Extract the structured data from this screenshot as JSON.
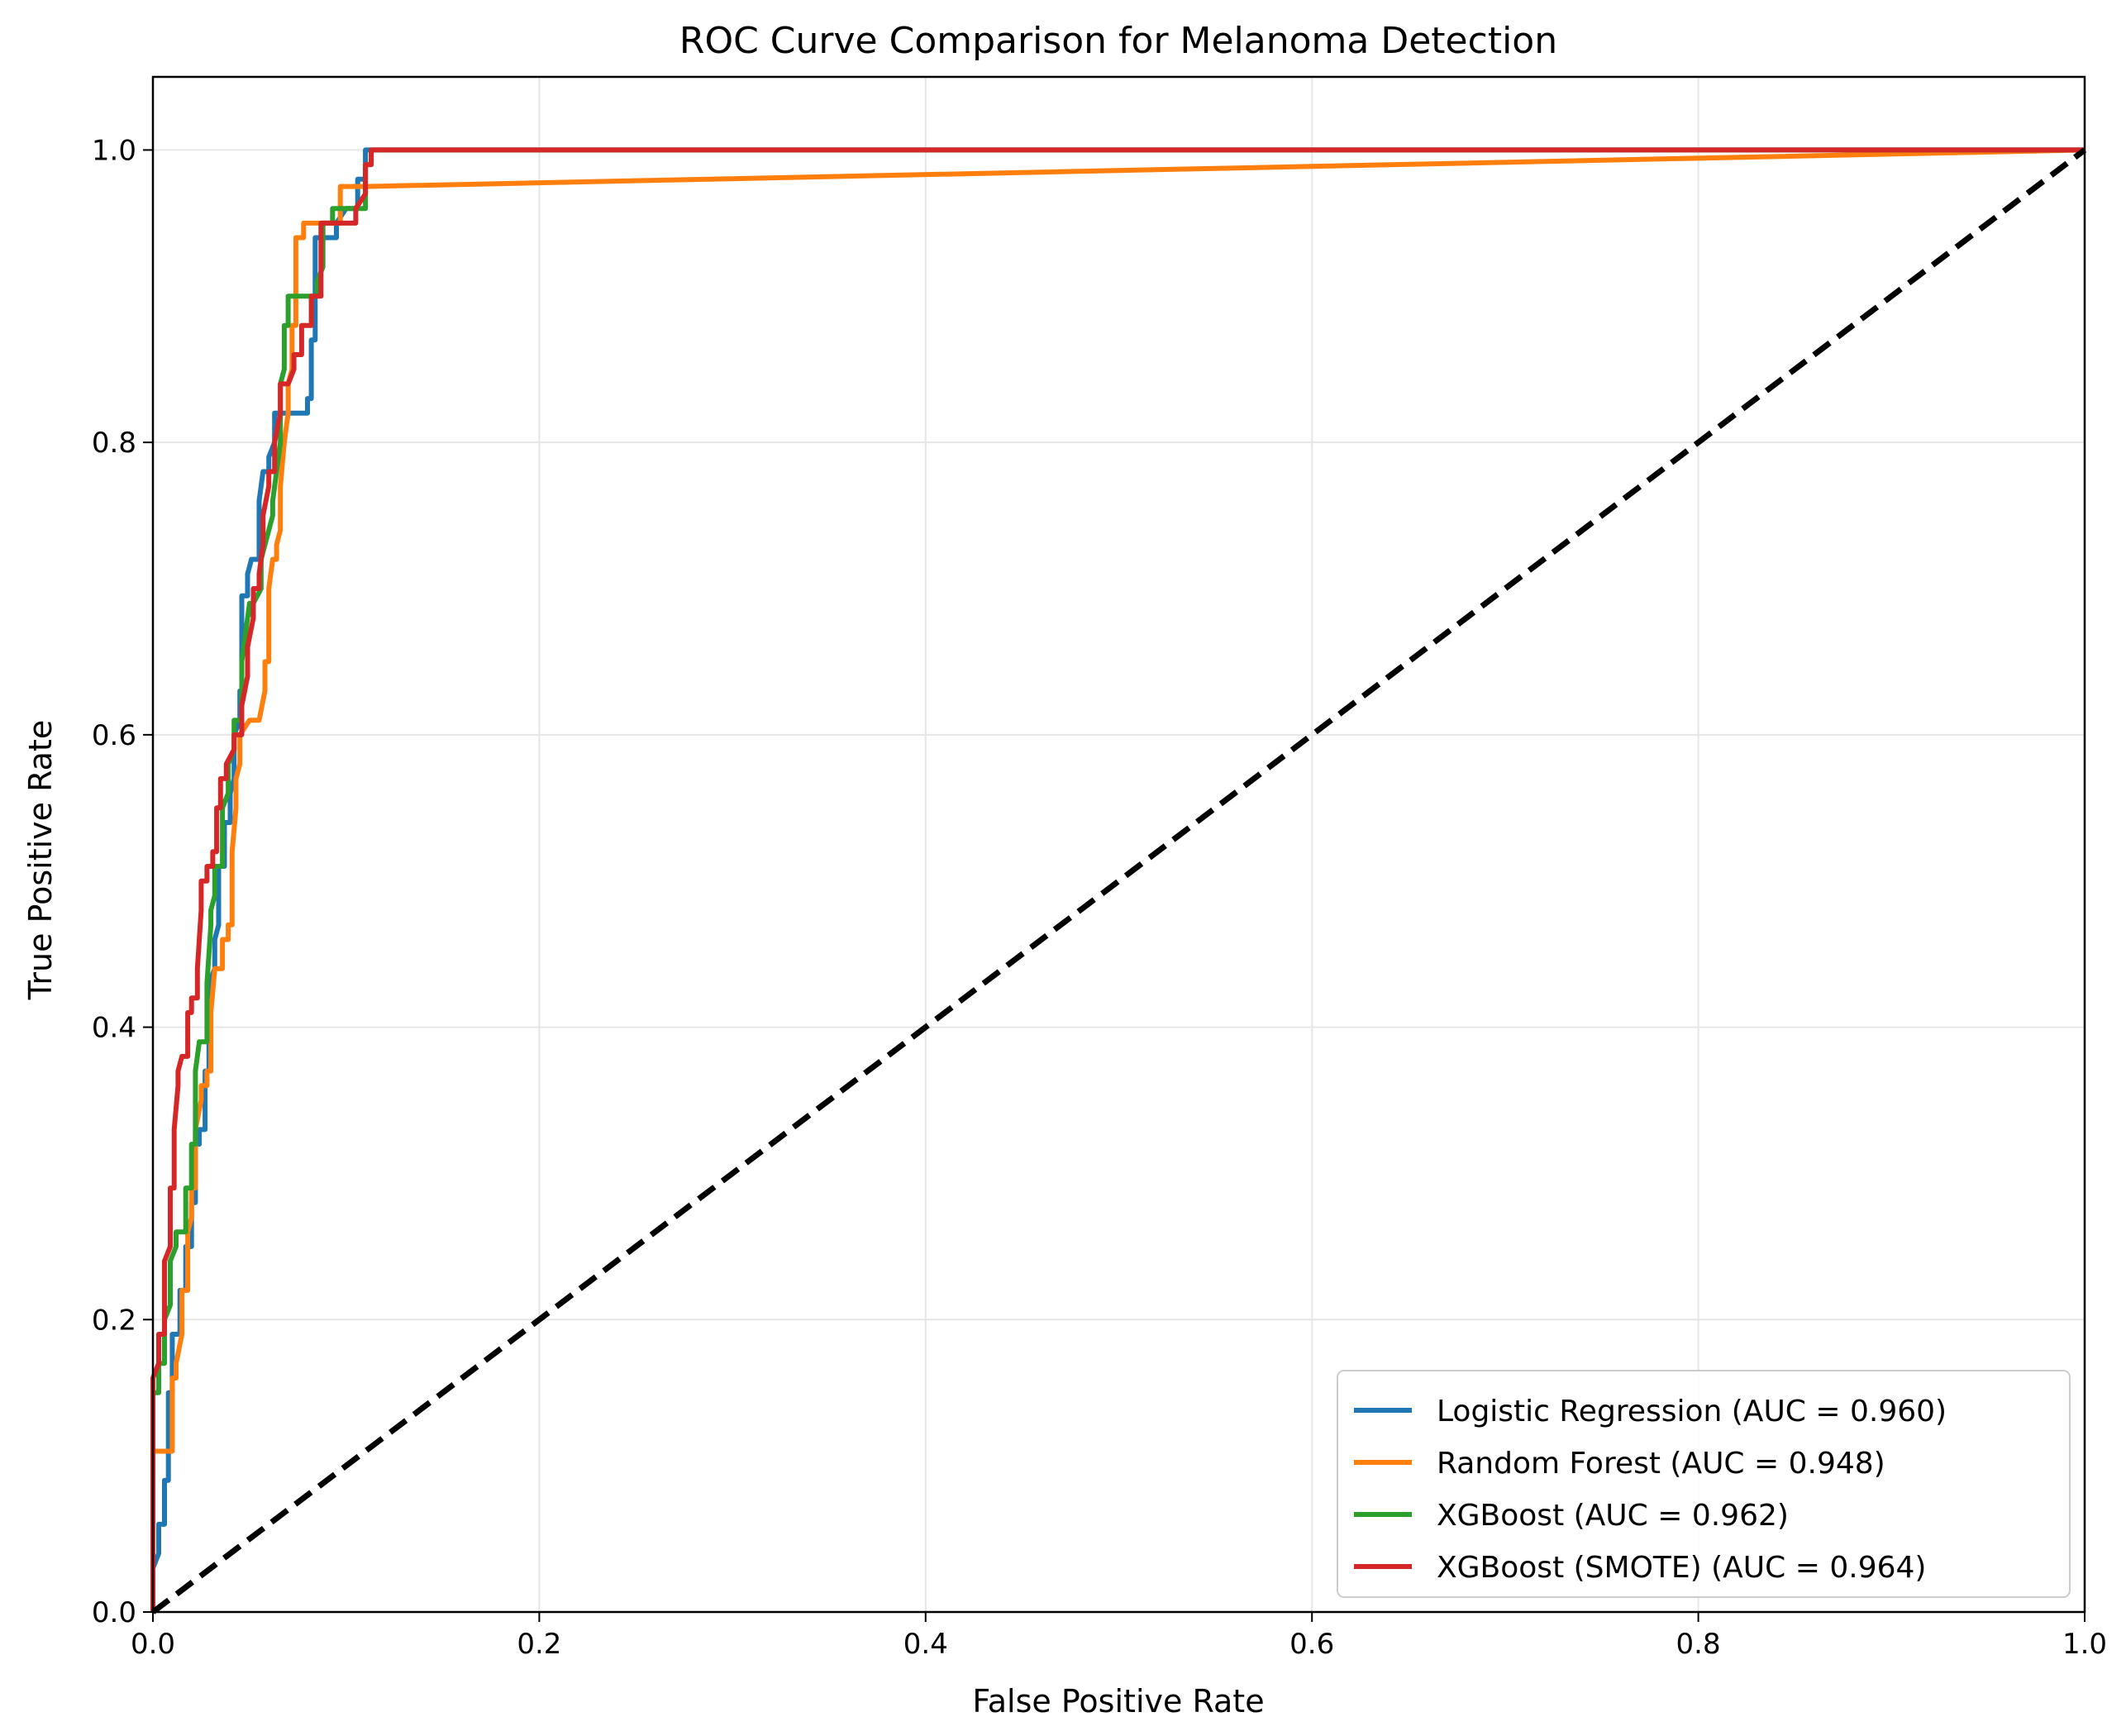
{
  "chart_data": {
    "type": "line",
    "title": "ROC Curve Comparison for Melanoma Detection",
    "xlabel": "False Positive Rate",
    "ylabel": "True Positive Rate",
    "xlim": [
      0.0,
      1.0
    ],
    "ylim": [
      0.0,
      1.05
    ],
    "x_ticks": [
      "0.0",
      "0.2",
      "0.4",
      "0.6",
      "0.8",
      "1.0"
    ],
    "y_ticks": [
      "0.0",
      "0.2",
      "0.4",
      "0.6",
      "0.8",
      "1.0"
    ],
    "grid": true,
    "legend_position": "bottom-right",
    "series": [
      {
        "name": "Logistic Regression (AUC = 0.960)",
        "color": "#1f77b4",
        "points": [
          [
            0,
            0
          ],
          [
            0,
            0.03
          ],
          [
            0.003,
            0.04
          ],
          [
            0.003,
            0.06
          ],
          [
            0.006,
            0.06
          ],
          [
            0.006,
            0.09
          ],
          [
            0.008,
            0.09
          ],
          [
            0.008,
            0.15
          ],
          [
            0.01,
            0.15
          ],
          [
            0.01,
            0.19
          ],
          [
            0.014,
            0.19
          ],
          [
            0.014,
            0.22
          ],
          [
            0.017,
            0.22
          ],
          [
            0.017,
            0.25
          ],
          [
            0.02,
            0.25
          ],
          [
            0.02,
            0.28
          ],
          [
            0.022,
            0.28
          ],
          [
            0.022,
            0.32
          ],
          [
            0.024,
            0.32
          ],
          [
            0.024,
            0.33
          ],
          [
            0.027,
            0.33
          ],
          [
            0.027,
            0.37
          ],
          [
            0.029,
            0.37
          ],
          [
            0.029,
            0.43
          ],
          [
            0.032,
            0.44
          ],
          [
            0.032,
            0.46
          ],
          [
            0.034,
            0.47
          ],
          [
            0.034,
            0.51
          ],
          [
            0.037,
            0.51
          ],
          [
            0.037,
            0.54
          ],
          [
            0.04,
            0.54
          ],
          [
            0.04,
            0.56
          ],
          [
            0.042,
            0.57
          ],
          [
            0.042,
            0.6
          ],
          [
            0.045,
            0.61
          ],
          [
            0.045,
            0.63
          ],
          [
            0.046,
            0.63
          ],
          [
            0.046,
            0.695
          ],
          [
            0.049,
            0.695
          ],
          [
            0.049,
            0.71
          ],
          [
            0.051,
            0.72
          ],
          [
            0.055,
            0.72
          ],
          [
            0.055,
            0.76
          ],
          [
            0.057,
            0.78
          ],
          [
            0.06,
            0.78
          ],
          [
            0.06,
            0.79
          ],
          [
            0.063,
            0.8
          ],
          [
            0.063,
            0.82
          ],
          [
            0.08,
            0.82
          ],
          [
            0.08,
            0.83
          ],
          [
            0.082,
            0.83
          ],
          [
            0.082,
            0.87
          ],
          [
            0.084,
            0.87
          ],
          [
            0.084,
            0.94
          ],
          [
            0.095,
            0.94
          ],
          [
            0.095,
            0.95
          ],
          [
            0.1,
            0.96
          ],
          [
            0.106,
            0.96
          ],
          [
            0.106,
            0.98
          ],
          [
            0.11,
            0.98
          ],
          [
            0.11,
            1.0
          ],
          [
            1.0,
            1.0
          ]
        ]
      },
      {
        "name": "Random Forest (AUC = 0.948)",
        "color": "#ff7f0e",
        "points": [
          [
            0,
            0
          ],
          [
            0,
            0.11
          ],
          [
            0.01,
            0.11
          ],
          [
            0.01,
            0.16
          ],
          [
            0.012,
            0.16
          ],
          [
            0.012,
            0.17
          ],
          [
            0.015,
            0.19
          ],
          [
            0.015,
            0.22
          ],
          [
            0.018,
            0.22
          ],
          [
            0.018,
            0.26
          ],
          [
            0.02,
            0.27
          ],
          [
            0.02,
            0.29
          ],
          [
            0.022,
            0.29
          ],
          [
            0.022,
            0.33
          ],
          [
            0.025,
            0.35
          ],
          [
            0.025,
            0.36
          ],
          [
            0.028,
            0.36
          ],
          [
            0.028,
            0.37
          ],
          [
            0.03,
            0.37
          ],
          [
            0.03,
            0.41
          ],
          [
            0.032,
            0.44
          ],
          [
            0.036,
            0.44
          ],
          [
            0.036,
            0.46
          ],
          [
            0.039,
            0.46
          ],
          [
            0.039,
            0.47
          ],
          [
            0.041,
            0.47
          ],
          [
            0.041,
            0.52
          ],
          [
            0.043,
            0.55
          ],
          [
            0.043,
            0.57
          ],
          [
            0.045,
            0.58
          ],
          [
            0.045,
            0.6
          ],
          [
            0.05,
            0.61
          ],
          [
            0.055,
            0.61
          ],
          [
            0.058,
            0.63
          ],
          [
            0.058,
            0.65
          ],
          [
            0.06,
            0.65
          ],
          [
            0.06,
            0.7
          ],
          [
            0.062,
            0.72
          ],
          [
            0.064,
            0.72
          ],
          [
            0.064,
            0.73
          ],
          [
            0.066,
            0.74
          ],
          [
            0.066,
            0.77
          ],
          [
            0.068,
            0.8
          ],
          [
            0.07,
            0.82
          ],
          [
            0.07,
            0.84
          ],
          [
            0.072,
            0.85
          ],
          [
            0.072,
            0.88
          ],
          [
            0.074,
            0.88
          ],
          [
            0.074,
            0.94
          ],
          [
            0.078,
            0.94
          ],
          [
            0.078,
            0.95
          ],
          [
            0.097,
            0.95
          ],
          [
            0.097,
            0.975
          ],
          [
            0.11,
            0.975
          ],
          [
            1.0,
            1.0
          ]
        ]
      },
      {
        "name": "XGBoost (AUC = 0.962)",
        "color": "#2ca02c",
        "points": [
          [
            0,
            0
          ],
          [
            0,
            0.15
          ],
          [
            0.003,
            0.15
          ],
          [
            0.003,
            0.17
          ],
          [
            0.006,
            0.17
          ],
          [
            0.006,
            0.2
          ],
          [
            0.009,
            0.21
          ],
          [
            0.009,
            0.24
          ],
          [
            0.012,
            0.25
          ],
          [
            0.012,
            0.26
          ],
          [
            0.017,
            0.26
          ],
          [
            0.017,
            0.29
          ],
          [
            0.02,
            0.29
          ],
          [
            0.02,
            0.32
          ],
          [
            0.022,
            0.32
          ],
          [
            0.022,
            0.37
          ],
          [
            0.024,
            0.39
          ],
          [
            0.028,
            0.39
          ],
          [
            0.028,
            0.43
          ],
          [
            0.03,
            0.47
          ],
          [
            0.03,
            0.48
          ],
          [
            0.032,
            0.49
          ],
          [
            0.032,
            0.51
          ],
          [
            0.036,
            0.51
          ],
          [
            0.036,
            0.55
          ],
          [
            0.039,
            0.56
          ],
          [
            0.039,
            0.58
          ],
          [
            0.042,
            0.59
          ],
          [
            0.042,
            0.61
          ],
          [
            0.046,
            0.61
          ],
          [
            0.046,
            0.65
          ],
          [
            0.05,
            0.69
          ],
          [
            0.052,
            0.68
          ],
          [
            0.052,
            0.69
          ],
          [
            0.056,
            0.7
          ],
          [
            0.056,
            0.72
          ],
          [
            0.06,
            0.74
          ],
          [
            0.062,
            0.75
          ],
          [
            0.062,
            0.76
          ],
          [
            0.064,
            0.78
          ],
          [
            0.066,
            0.8
          ],
          [
            0.066,
            0.84
          ],
          [
            0.068,
            0.85
          ],
          [
            0.068,
            0.88
          ],
          [
            0.07,
            0.88
          ],
          [
            0.07,
            0.9
          ],
          [
            0.085,
            0.9
          ],
          [
            0.085,
            0.91
          ],
          [
            0.088,
            0.92
          ],
          [
            0.088,
            0.95
          ],
          [
            0.093,
            0.95
          ],
          [
            0.093,
            0.96
          ],
          [
            0.11,
            0.96
          ],
          [
            0.11,
            0.99
          ],
          [
            0.113,
            0.99
          ],
          [
            0.113,
            1.0
          ],
          [
            1.0,
            1.0
          ]
        ]
      },
      {
        "name": "XGBoost (SMOTE) (AUC = 0.964)",
        "color": "#d62728",
        "points": [
          [
            0,
            0
          ],
          [
            0,
            0.16
          ],
          [
            0.003,
            0.17
          ],
          [
            0.003,
            0.19
          ],
          [
            0.006,
            0.19
          ],
          [
            0.006,
            0.24
          ],
          [
            0.009,
            0.25
          ],
          [
            0.009,
            0.29
          ],
          [
            0.011,
            0.29
          ],
          [
            0.011,
            0.33
          ],
          [
            0.013,
            0.36
          ],
          [
            0.013,
            0.37
          ],
          [
            0.015,
            0.38
          ],
          [
            0.018,
            0.38
          ],
          [
            0.018,
            0.41
          ],
          [
            0.02,
            0.41
          ],
          [
            0.02,
            0.42
          ],
          [
            0.023,
            0.42
          ],
          [
            0.023,
            0.44
          ],
          [
            0.025,
            0.48
          ],
          [
            0.025,
            0.5
          ],
          [
            0.028,
            0.5
          ],
          [
            0.028,
            0.51
          ],
          [
            0.031,
            0.51
          ],
          [
            0.031,
            0.52
          ],
          [
            0.033,
            0.52
          ],
          [
            0.033,
            0.55
          ],
          [
            0.035,
            0.55
          ],
          [
            0.035,
            0.57
          ],
          [
            0.038,
            0.57
          ],
          [
            0.038,
            0.58
          ],
          [
            0.042,
            0.59
          ],
          [
            0.042,
            0.6
          ],
          [
            0.046,
            0.6
          ],
          [
            0.046,
            0.62
          ],
          [
            0.049,
            0.64
          ],
          [
            0.049,
            0.66
          ],
          [
            0.052,
            0.68
          ],
          [
            0.052,
            0.7
          ],
          [
            0.055,
            0.7
          ],
          [
            0.055,
            0.71
          ],
          [
            0.057,
            0.73
          ],
          [
            0.057,
            0.75
          ],
          [
            0.06,
            0.77
          ],
          [
            0.06,
            0.78
          ],
          [
            0.063,
            0.78
          ],
          [
            0.063,
            0.8
          ],
          [
            0.066,
            0.82
          ],
          [
            0.066,
            0.84
          ],
          [
            0.07,
            0.84
          ],
          [
            0.073,
            0.85
          ],
          [
            0.073,
            0.86
          ],
          [
            0.077,
            0.86
          ],
          [
            0.077,
            0.88
          ],
          [
            0.082,
            0.88
          ],
          [
            0.082,
            0.9
          ],
          [
            0.087,
            0.9
          ],
          [
            0.087,
            0.95
          ],
          [
            0.105,
            0.95
          ],
          [
            0.105,
            0.96
          ],
          [
            0.11,
            0.97
          ],
          [
            0.11,
            0.99
          ],
          [
            0.113,
            0.99
          ],
          [
            0.113,
            1.0
          ],
          [
            1.0,
            1.0
          ]
        ]
      },
      {
        "name": "",
        "color": "#000000",
        "dashed": true,
        "points": [
          [
            0,
            0
          ],
          [
            1,
            1
          ]
        ]
      }
    ]
  }
}
